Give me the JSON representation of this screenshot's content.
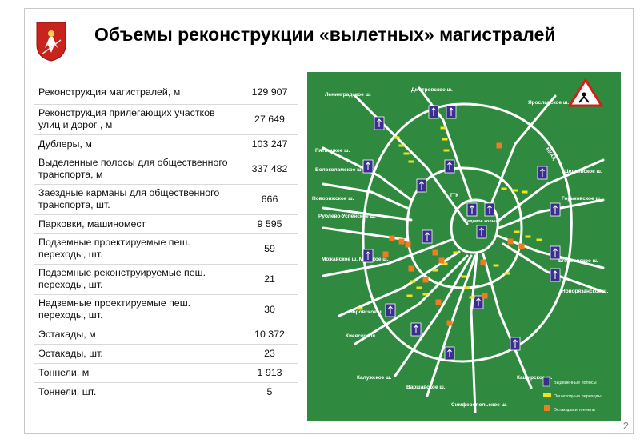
{
  "header": {
    "title": "Объемы реконструкции «вылетных» магистралей"
  },
  "table": {
    "rows": [
      {
        "label": "Реконструкция магистралей, м",
        "value": "129 907"
      },
      {
        "label": "Реконструкция прилегающих участков улиц и дорог , м",
        "value": "27 649"
      },
      {
        "label": "Дублеры, м",
        "value": "103 247"
      },
      {
        "label": "Выделенные полосы для общественного транспорта, м",
        "value": "337 482"
      },
      {
        "label": "Заездные карманы для общественного транспорта, шт.",
        "value": "666"
      },
      {
        "label": "Парковки, машиномест",
        "value": "9 595"
      },
      {
        "label": "Подземные проектируемые пеш. переходы, шт.",
        "value": "59"
      },
      {
        "label": "Подземные реконструируемые пеш. переходы, шт.",
        "value": "21"
      },
      {
        "label": "Надземные проектируемые пеш. переходы, шт.",
        "value": "30"
      },
      {
        "label": "Эстакады, м",
        "value": "10 372"
      },
      {
        "label": "Эстакады, шт.",
        "value": "23"
      },
      {
        "label": "Тоннели, м",
        "value": "1 913"
      },
      {
        "label": "Тоннели, шт.",
        "value": "5"
      }
    ]
  },
  "map": {
    "highways": {
      "leningradskoe": "Ленинградское ш.",
      "dmitrovskoe": "Дмитровское ш.",
      "yaroslavskoe": "Ярославское ш.",
      "pyatnitskoe": "Пятницкое ш.",
      "volokolamskoe": "Волоколамское ш.",
      "shchelkovskoe": "Щелковское ш.",
      "gorkovskoe": "Горьковское ш.",
      "novorizhskoe": "Новорижское ш.",
      "rublevo": "Рублево-Успенское ш.",
      "mozhayskoe": "Можайское ш. Минское ш.",
      "egoryevskoe": "Егорьевское ш.",
      "novoryazanskoe": "Новорязанское ш.",
      "borovskoe": "Боровское ш.",
      "kievskoe": "Киевское ш.",
      "kaluzhskoe": "Калужское ш.",
      "varshavskoe": "Варшавское ш.",
      "kashirskoe": "Каширское ш.",
      "simferopolskoe": "Симферопольское ш."
    },
    "rings": {
      "mkad": "МКАД",
      "ttk": "ТТК",
      "sadovoe": "Садовое кольцо"
    },
    "legend": {
      "lanes": "Выделенные полосы",
      "crossings": "Пешеходные переходы",
      "overpasses": "Эстакады и тоннели"
    },
    "colors": {
      "background": "#2f8a3f",
      "roads": "#ffffff",
      "marker": "#3a2f8f",
      "crossing": "#f2e21a",
      "overpass": "#f07c22"
    }
  },
  "page": {
    "number": "2"
  }
}
